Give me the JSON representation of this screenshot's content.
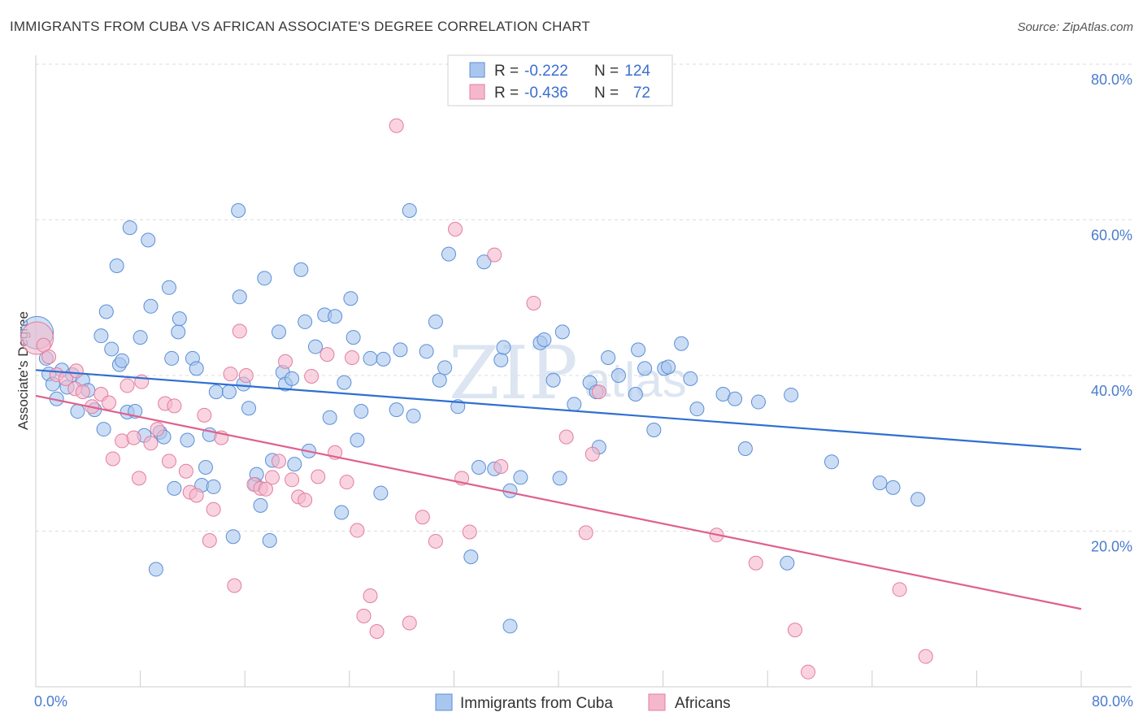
{
  "title": "IMMIGRANTS FROM CUBA VS AFRICAN ASSOCIATE'S DEGREE CORRELATION CHART",
  "source": "Source: ZipAtlas.com",
  "watermark": {
    "main": "ZIP",
    "sub": "atlas"
  },
  "colors": {
    "blue_fill": "#a9c6ee",
    "blue_stroke": "#5b8fd6",
    "blue_line": "#2f6fd0",
    "pink_fill": "#f5b8cb",
    "pink_stroke": "#e27d9f",
    "pink_line": "#e0608e",
    "grid": "#dddddd",
    "tick_text": "#4a7ccf"
  },
  "legend": {
    "rows": [
      {
        "r_label": "R =",
        "r_value": "-0.222",
        "n_label": "N =",
        "n_value": "124"
      },
      {
        "r_label": "R =",
        "r_value": "-0.436",
        "n_label": "N =",
        "n_value": "72"
      }
    ]
  },
  "bottom_legend": [
    "Immigrants from Cuba",
    "Africans"
  ],
  "chart_data": {
    "type": "scatter",
    "title": "IMMIGRANTS FROM CUBA VS AFRICAN ASSOCIATE'S DEGREE CORRELATION CHART",
    "xlabel": "",
    "ylabel": "Associate's Degree",
    "xlim": [
      0,
      80
    ],
    "ylim": [
      0,
      80
    ],
    "x_tick_labels": [
      "0.0%",
      "80.0%"
    ],
    "y_tick_labels": [
      "20.0%",
      "40.0%",
      "60.0%",
      "80.0%"
    ],
    "y_ticks": [
      20,
      40,
      60,
      80
    ],
    "legend_position": "top-center",
    "grid": true,
    "series": [
      {
        "name": "Immigrants from Cuba",
        "color": "#a9c6ee",
        "r": "-0.222",
        "n": "124",
        "trend": {
          "x": [
            0,
            80
          ],
          "y": [
            40.7,
            30.5
          ]
        },
        "points": [
          [
            0.1,
            45.5
          ],
          [
            0.8,
            42.2
          ],
          [
            1.0,
            40.2
          ],
          [
            1.3,
            38.9
          ],
          [
            1.6,
            37.0
          ],
          [
            2.0,
            40.7
          ],
          [
            2.4,
            38.5
          ],
          [
            2.8,
            40.1
          ],
          [
            3.2,
            35.4
          ],
          [
            3.6,
            39.4
          ],
          [
            4.0,
            38.1
          ],
          [
            4.5,
            35.6
          ],
          [
            5.0,
            45.1
          ],
          [
            5.2,
            33.1
          ],
          [
            5.4,
            48.2
          ],
          [
            5.8,
            43.4
          ],
          [
            6.2,
            54.1
          ],
          [
            6.4,
            41.4
          ],
          [
            6.6,
            41.9
          ],
          [
            7.0,
            35.3
          ],
          [
            7.2,
            59.0
          ],
          [
            7.6,
            35.4
          ],
          [
            8.0,
            44.9
          ],
          [
            8.3,
            32.3
          ],
          [
            8.6,
            57.4
          ],
          [
            8.8,
            48.9
          ],
          [
            9.2,
            15.1
          ],
          [
            9.5,
            32.7
          ],
          [
            9.8,
            32.1
          ],
          [
            10.2,
            51.3
          ],
          [
            10.4,
            42.2
          ],
          [
            10.6,
            25.5
          ],
          [
            10.9,
            45.6
          ],
          [
            11.0,
            47.3
          ],
          [
            11.6,
            31.7
          ],
          [
            12.0,
            42.2
          ],
          [
            12.3,
            40.9
          ],
          [
            12.7,
            25.9
          ],
          [
            13.0,
            28.2
          ],
          [
            13.3,
            32.4
          ],
          [
            13.6,
            25.7
          ],
          [
            13.8,
            37.9
          ],
          [
            14.8,
            37.9
          ],
          [
            15.1,
            19.3
          ],
          [
            15.5,
            61.2
          ],
          [
            15.6,
            50.1
          ],
          [
            15.9,
            38.9
          ],
          [
            16.3,
            35.8
          ],
          [
            16.8,
            26.0
          ],
          [
            16.9,
            27.3
          ],
          [
            17.2,
            23.3
          ],
          [
            17.5,
            52.5
          ],
          [
            17.9,
            18.8
          ],
          [
            18.1,
            29.1
          ],
          [
            18.6,
            45.6
          ],
          [
            18.9,
            40.4
          ],
          [
            19.1,
            38.9
          ],
          [
            19.6,
            39.6
          ],
          [
            19.8,
            28.6
          ],
          [
            20.3,
            53.6
          ],
          [
            20.6,
            46.9
          ],
          [
            20.9,
            30.3
          ],
          [
            21.4,
            43.7
          ],
          [
            22.1,
            47.8
          ],
          [
            22.5,
            34.6
          ],
          [
            22.9,
            47.6
          ],
          [
            23.4,
            22.4
          ],
          [
            23.6,
            39.1
          ],
          [
            24.1,
            49.9
          ],
          [
            24.3,
            44.9
          ],
          [
            24.6,
            31.7
          ],
          [
            24.9,
            35.4
          ],
          [
            25.6,
            42.2
          ],
          [
            26.4,
            24.9
          ],
          [
            26.6,
            42.1
          ],
          [
            27.6,
            35.6
          ],
          [
            27.9,
            43.3
          ],
          [
            28.6,
            61.2
          ],
          [
            28.9,
            34.8
          ],
          [
            29.9,
            43.1
          ],
          [
            30.6,
            46.9
          ],
          [
            30.9,
            39.4
          ],
          [
            31.3,
            41.0
          ],
          [
            31.6,
            55.6
          ],
          [
            32.3,
            36.0
          ],
          [
            33.3,
            16.7
          ],
          [
            33.9,
            28.2
          ],
          [
            34.3,
            54.6
          ],
          [
            35.1,
            28.0
          ],
          [
            35.6,
            42.0
          ],
          [
            35.8,
            43.6
          ],
          [
            36.3,
            25.2
          ],
          [
            37.1,
            26.9
          ],
          [
            38.6,
            44.2
          ],
          [
            38.9,
            44.6
          ],
          [
            39.6,
            39.4
          ],
          [
            40.1,
            26.8
          ],
          [
            40.3,
            45.6
          ],
          [
            41.2,
            36.3
          ],
          [
            42.4,
            39.1
          ],
          [
            42.9,
            37.9
          ],
          [
            43.1,
            30.8
          ],
          [
            44.6,
            40.0
          ],
          [
            45.9,
            37.6
          ],
          [
            46.6,
            40.9
          ],
          [
            47.3,
            33.0
          ],
          [
            48.1,
            40.9
          ],
          [
            48.4,
            41.1
          ],
          [
            50.1,
            39.6
          ],
          [
            50.6,
            35.7
          ],
          [
            52.6,
            37.6
          ],
          [
            53.5,
            37.0
          ],
          [
            54.3,
            30.6
          ],
          [
            55.3,
            36.6
          ],
          [
            57.5,
            15.9
          ],
          [
            57.8,
            37.5
          ],
          [
            60.9,
            28.9
          ],
          [
            64.6,
            26.2
          ],
          [
            65.6,
            25.6
          ],
          [
            67.5,
            24.1
          ],
          [
            36.3,
            7.8
          ],
          [
            43.8,
            42.3
          ],
          [
            46.1,
            43.3
          ],
          [
            49.4,
            44.1
          ]
        ]
      },
      {
        "name": "Africans",
        "color": "#f5b8cb",
        "r": "-0.436",
        "n": "72",
        "trend": {
          "x": [
            0,
            80
          ],
          "y": [
            37.4,
            10.0
          ]
        },
        "points": [
          [
            0.1,
            44.8
          ],
          [
            0.6,
            43.9
          ],
          [
            1.0,
            42.4
          ],
          [
            1.6,
            40.1
          ],
          [
            2.3,
            39.6
          ],
          [
            3.0,
            38.3
          ],
          [
            3.6,
            37.9
          ],
          [
            4.3,
            36.0
          ],
          [
            5.0,
            37.6
          ],
          [
            5.6,
            36.5
          ],
          [
            5.9,
            29.3
          ],
          [
            6.6,
            31.6
          ],
          [
            7.0,
            38.7
          ],
          [
            7.5,
            32.0
          ],
          [
            7.9,
            26.8
          ],
          [
            8.1,
            39.2
          ],
          [
            8.8,
            31.3
          ],
          [
            9.3,
            33.1
          ],
          [
            9.9,
            36.4
          ],
          [
            10.2,
            29.0
          ],
          [
            10.6,
            36.1
          ],
          [
            11.5,
            27.7
          ],
          [
            11.8,
            25.0
          ],
          [
            12.3,
            24.6
          ],
          [
            12.9,
            34.9
          ],
          [
            13.3,
            18.8
          ],
          [
            13.6,
            22.8
          ],
          [
            14.2,
            32.0
          ],
          [
            14.9,
            40.2
          ],
          [
            15.2,
            13.0
          ],
          [
            15.6,
            45.7
          ],
          [
            16.1,
            40.0
          ],
          [
            16.7,
            26.0
          ],
          [
            17.2,
            25.5
          ],
          [
            17.6,
            25.4
          ],
          [
            18.1,
            26.9
          ],
          [
            18.6,
            29.0
          ],
          [
            19.1,
            41.8
          ],
          [
            19.6,
            26.6
          ],
          [
            20.1,
            24.4
          ],
          [
            20.6,
            24.0
          ],
          [
            21.1,
            39.9
          ],
          [
            21.6,
            27.0
          ],
          [
            22.3,
            42.7
          ],
          [
            22.9,
            30.1
          ],
          [
            23.8,
            26.3
          ],
          [
            24.2,
            42.3
          ],
          [
            24.6,
            20.1
          ],
          [
            25.1,
            9.1
          ],
          [
            25.6,
            11.7
          ],
          [
            26.1,
            7.1
          ],
          [
            27.6,
            72.1
          ],
          [
            28.6,
            8.2
          ],
          [
            29.6,
            21.8
          ],
          [
            30.6,
            18.7
          ],
          [
            32.1,
            58.8
          ],
          [
            32.6,
            26.8
          ],
          [
            33.2,
            19.9
          ],
          [
            35.1,
            55.5
          ],
          [
            35.6,
            28.3
          ],
          [
            38.1,
            49.3
          ],
          [
            40.6,
            32.1
          ],
          [
            42.1,
            19.8
          ],
          [
            42.6,
            29.9
          ],
          [
            43.1,
            37.9
          ],
          [
            52.1,
            19.5
          ],
          [
            55.1,
            15.9
          ],
          [
            58.1,
            7.3
          ],
          [
            59.1,
            1.9
          ],
          [
            66.1,
            12.5
          ],
          [
            68.1,
            3.9
          ],
          [
            3.1,
            40.6
          ]
        ]
      }
    ]
  }
}
